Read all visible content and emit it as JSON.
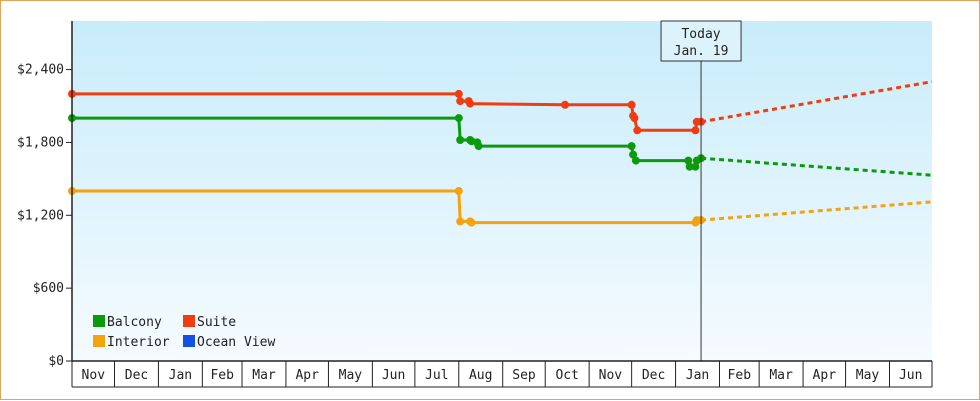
{
  "chart_data": {
    "type": "line",
    "title": "",
    "xlabel": "",
    "ylabel": "",
    "y_tick_labels": [
      "$0",
      "$600",
      "$1,200",
      "$1,800",
      "$2,400"
    ],
    "y_ticks": [
      0,
      600,
      1200,
      1800,
      2400
    ],
    "ylim": [
      0,
      2800
    ],
    "x_tick_labels": [
      "Nov",
      "Dec",
      "Jan",
      "Feb",
      "Mar",
      "Apr",
      "May",
      "Jun",
      "Jul",
      "Aug",
      "Sep",
      "Oct",
      "Nov",
      "Dec",
      "Jan",
      "Feb",
      "Mar",
      "Apr",
      "May",
      "Jun"
    ],
    "x_tick_months": [
      "2024-11",
      "2024-12",
      "2025-01",
      "2025-02",
      "2025-03",
      "2025-04",
      "2025-05",
      "2025-06",
      "2025-07",
      "2025-08",
      "2025-09",
      "2025-10",
      "2025-11",
      "2025-12",
      "2026-01",
      "2026-02",
      "2026-03",
      "2026-04",
      "2026-05",
      "2026-06"
    ],
    "xlim": [
      "2024-11-01",
      "2026-07-01"
    ],
    "grid": false,
    "legend_position": "bottom-left",
    "today": {
      "label_line1": "Today",
      "label_line2": "Jan. 19",
      "date": "2026-01-19"
    },
    "series": [
      {
        "name": "Balcony",
        "color": "#0b9a0b",
        "points": [
          [
            "2024-11-01",
            2000
          ],
          [
            "2025-08-01",
            2000
          ],
          [
            "2025-08-02",
            1820
          ],
          [
            "2025-08-09",
            1820
          ],
          [
            "2025-08-10",
            1810
          ],
          [
            "2025-08-14",
            1800
          ],
          [
            "2025-08-15",
            1770
          ],
          [
            "2025-12-01",
            1770
          ],
          [
            "2025-12-02",
            1700
          ],
          [
            "2025-12-04",
            1650
          ],
          [
            "2026-01-10",
            1650
          ],
          [
            "2026-01-11",
            1600
          ],
          [
            "2026-01-15",
            1600
          ],
          [
            "2026-01-16",
            1650
          ],
          [
            "2026-01-19",
            1670
          ]
        ],
        "forecast": [
          [
            "2026-01-19",
            1670
          ],
          [
            "2026-07-01",
            1530
          ]
        ]
      },
      {
        "name": "Suite",
        "color": "#f03c10",
        "points": [
          [
            "2024-11-01",
            2200
          ],
          [
            "2025-08-01",
            2200
          ],
          [
            "2025-08-02",
            2140
          ],
          [
            "2025-08-08",
            2140
          ],
          [
            "2025-08-09",
            2120
          ],
          [
            "2025-10-15",
            2110
          ],
          [
            "2025-12-01",
            2110
          ],
          [
            "2025-12-02",
            2020
          ],
          [
            "2025-12-03",
            2000
          ],
          [
            "2025-12-05",
            1900
          ],
          [
            "2026-01-15",
            1900
          ],
          [
            "2026-01-16",
            1970
          ],
          [
            "2026-01-19",
            1970
          ]
        ],
        "forecast": [
          [
            "2026-01-19",
            1970
          ],
          [
            "2026-07-01",
            2300
          ]
        ]
      },
      {
        "name": "Interior",
        "color": "#f5a20f",
        "points": [
          [
            "2024-11-01",
            1400
          ],
          [
            "2025-08-01",
            1400
          ],
          [
            "2025-08-02",
            1150
          ],
          [
            "2025-08-09",
            1150
          ],
          [
            "2025-08-10",
            1140
          ],
          [
            "2026-01-15",
            1140
          ],
          [
            "2026-01-16",
            1160
          ],
          [
            "2026-01-19",
            1160
          ]
        ],
        "forecast": [
          [
            "2026-01-19",
            1160
          ],
          [
            "2026-07-01",
            1310
          ]
        ]
      },
      {
        "name": "Ocean View",
        "color": "#1450e6",
        "points": [],
        "forecast": []
      }
    ]
  }
}
